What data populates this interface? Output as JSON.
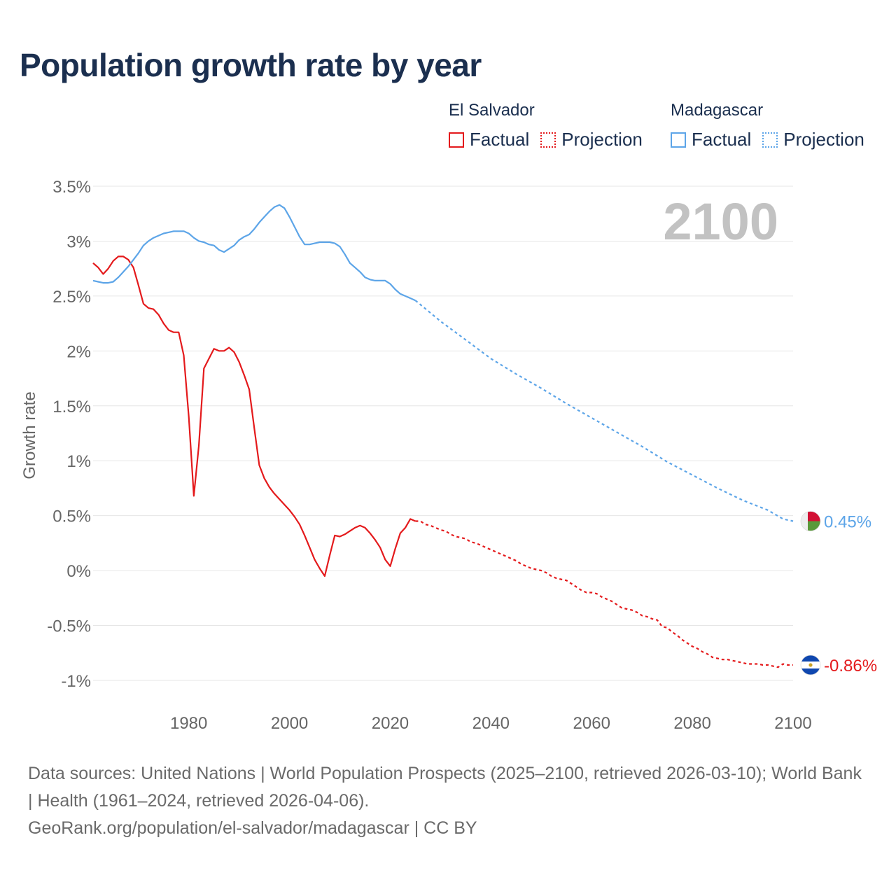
{
  "title": "Population growth rate by year",
  "legend": {
    "el_salvador": {
      "name": "El Salvador",
      "factual": "Factual",
      "projection": "Projection"
    },
    "madagascar": {
      "name": "Madagascar",
      "factual": "Factual",
      "projection": "Projection"
    }
  },
  "footer": {
    "sources": "Data sources: United Nations | World Population Prospects (2025–2100, retrieved 2026-03-10); World Bank | Health (1961–2024, retrieved 2026-04-06).",
    "url": "GeoRank.org/population/el-salvador/madagascar | CC BY"
  },
  "colors": {
    "el_salvador": "#e41a1c",
    "madagascar": "#5da5e8",
    "year_label": "#c2c2c2",
    "axis_text": "#666666"
  },
  "chart_data": {
    "type": "line",
    "title": "Population growth rate by year",
    "ylabel": "Growth rate",
    "xlabel": "",
    "year_label": "2100",
    "xlim": [
      1961,
      2100
    ],
    "ylim": [
      -1,
      3.5
    ],
    "y_ticks": [
      3.5,
      3,
      2.5,
      2,
      1.5,
      1,
      0.5,
      0,
      -0.5,
      -1
    ],
    "y_tick_labels": [
      "3.5%",
      "3%",
      "2.5%",
      "2%",
      "1.5%",
      "1%",
      "0.5%",
      "0%",
      "-0.5%",
      "-1%"
    ],
    "x_ticks": [
      1980,
      2000,
      2020,
      2040,
      2060,
      2080,
      2100
    ],
    "x_tick_labels": [
      "1980",
      "2000",
      "2020",
      "2040",
      "2060",
      "2080",
      "2100"
    ],
    "series": [
      {
        "name": "El Salvador",
        "color_key": "el_salvador",
        "end_label": "-0.86%",
        "factual": [
          [
            1961,
            2.8
          ],
          [
            1962,
            2.76
          ],
          [
            1963,
            2.7
          ],
          [
            1964,
            2.75
          ],
          [
            1965,
            2.82
          ],
          [
            1966,
            2.86
          ],
          [
            1967,
            2.86
          ],
          [
            1968,
            2.83
          ],
          [
            1969,
            2.76
          ],
          [
            1970,
            2.6
          ],
          [
            1971,
            2.43
          ],
          [
            1972,
            2.39
          ],
          [
            1973,
            2.38
          ],
          [
            1974,
            2.33
          ],
          [
            1975,
            2.25
          ],
          [
            1976,
            2.19
          ],
          [
            1977,
            2.17
          ],
          [
            1978,
            2.17
          ],
          [
            1979,
            1.96
          ],
          [
            1980,
            1.4
          ],
          [
            1981,
            0.68
          ],
          [
            1982,
            1.14
          ],
          [
            1983,
            1.84
          ],
          [
            1984,
            1.93
          ],
          [
            1985,
            2.02
          ],
          [
            1986,
            2.0
          ],
          [
            1987,
            2.0
          ],
          [
            1988,
            2.03
          ],
          [
            1989,
            1.99
          ],
          [
            1990,
            1.9
          ],
          [
            1991,
            1.78
          ],
          [
            1992,
            1.65
          ],
          [
            1993,
            1.3
          ],
          [
            1994,
            0.96
          ],
          [
            1995,
            0.84
          ],
          [
            1996,
            0.76
          ],
          [
            1997,
            0.7
          ],
          [
            1998,
            0.65
          ],
          [
            1999,
            0.6
          ],
          [
            2000,
            0.55
          ],
          [
            2001,
            0.49
          ],
          [
            2002,
            0.42
          ],
          [
            2003,
            0.32
          ],
          [
            2004,
            0.21
          ],
          [
            2005,
            0.1
          ],
          [
            2006,
            0.02
          ],
          [
            2007,
            -0.05
          ],
          [
            2008,
            0.14
          ],
          [
            2009,
            0.32
          ],
          [
            2010,
            0.31
          ],
          [
            2011,
            0.33
          ],
          [
            2012,
            0.36
          ],
          [
            2013,
            0.39
          ],
          [
            2014,
            0.41
          ],
          [
            2015,
            0.39
          ],
          [
            2016,
            0.34
          ],
          [
            2017,
            0.28
          ],
          [
            2018,
            0.21
          ],
          [
            2019,
            0.1
          ],
          [
            2020,
            0.04
          ],
          [
            2021,
            0.2
          ],
          [
            2022,
            0.34
          ],
          [
            2023,
            0.39
          ],
          [
            2024,
            0.47
          ],
          [
            2025,
            0.45
          ]
        ],
        "projection": [
          [
            2025,
            0.45
          ],
          [
            2026,
            0.45
          ],
          [
            2027,
            0.42
          ],
          [
            2028,
            0.41
          ],
          [
            2029,
            0.39
          ],
          [
            2030,
            0.37
          ],
          [
            2031,
            0.36
          ],
          [
            2032,
            0.33
          ],
          [
            2033,
            0.31
          ],
          [
            2034,
            0.3
          ],
          [
            2035,
            0.29
          ],
          [
            2036,
            0.26
          ],
          [
            2037,
            0.25
          ],
          [
            2038,
            0.23
          ],
          [
            2039,
            0.21
          ],
          [
            2040,
            0.19
          ],
          [
            2041,
            0.17
          ],
          [
            2042,
            0.15
          ],
          [
            2043,
            0.13
          ],
          [
            2044,
            0.11
          ],
          [
            2045,
            0.09
          ],
          [
            2046,
            0.06
          ],
          [
            2047,
            0.04
          ],
          [
            2048,
            0.02
          ],
          [
            2049,
            0.01
          ],
          [
            2050,
            0.0
          ],
          [
            2051,
            -0.02
          ],
          [
            2052,
            -0.05
          ],
          [
            2053,
            -0.07
          ],
          [
            2054,
            -0.08
          ],
          [
            2055,
            -0.09
          ],
          [
            2056,
            -0.12
          ],
          [
            2057,
            -0.15
          ],
          [
            2058,
            -0.18
          ],
          [
            2059,
            -0.2
          ],
          [
            2060,
            -0.2
          ],
          [
            2061,
            -0.21
          ],
          [
            2062,
            -0.24
          ],
          [
            2063,
            -0.26
          ],
          [
            2064,
            -0.28
          ],
          [
            2065,
            -0.31
          ],
          [
            2066,
            -0.34
          ],
          [
            2067,
            -0.35
          ],
          [
            2068,
            -0.36
          ],
          [
            2069,
            -0.38
          ],
          [
            2070,
            -0.41
          ],
          [
            2071,
            -0.42
          ],
          [
            2072,
            -0.44
          ],
          [
            2073,
            -0.45
          ],
          [
            2074,
            -0.51
          ],
          [
            2075,
            -0.52
          ],
          [
            2076,
            -0.56
          ],
          [
            2077,
            -0.59
          ],
          [
            2078,
            -0.63
          ],
          [
            2079,
            -0.66
          ],
          [
            2080,
            -0.69
          ],
          [
            2081,
            -0.71
          ],
          [
            2082,
            -0.74
          ],
          [
            2083,
            -0.76
          ],
          [
            2084,
            -0.79
          ],
          [
            2085,
            -0.8
          ],
          [
            2086,
            -0.81
          ],
          [
            2087,
            -0.81
          ],
          [
            2088,
            -0.82
          ],
          [
            2089,
            -0.83
          ],
          [
            2090,
            -0.84
          ],
          [
            2091,
            -0.85
          ],
          [
            2092,
            -0.85
          ],
          [
            2093,
            -0.85
          ],
          [
            2094,
            -0.86
          ],
          [
            2095,
            -0.86
          ],
          [
            2096,
            -0.87
          ],
          [
            2097,
            -0.88
          ],
          [
            2098,
            -0.85
          ],
          [
            2099,
            -0.86
          ],
          [
            2100,
            -0.86
          ]
        ]
      },
      {
        "name": "Madagascar",
        "color_key": "madagascar",
        "end_label": "0.45%",
        "factual": [
          [
            1961,
            2.64
          ],
          [
            1962,
            2.63
          ],
          [
            1963,
            2.62
          ],
          [
            1964,
            2.62
          ],
          [
            1965,
            2.63
          ],
          [
            1966,
            2.67
          ],
          [
            1967,
            2.72
          ],
          [
            1968,
            2.77
          ],
          [
            1969,
            2.83
          ],
          [
            1970,
            2.89
          ],
          [
            1971,
            2.96
          ],
          [
            1972,
            3.0
          ],
          [
            1973,
            3.03
          ],
          [
            1974,
            3.05
          ],
          [
            1975,
            3.07
          ],
          [
            1976,
            3.08
          ],
          [
            1977,
            3.09
          ],
          [
            1978,
            3.09
          ],
          [
            1979,
            3.09
          ],
          [
            1980,
            3.07
          ],
          [
            1981,
            3.03
          ],
          [
            1982,
            3.0
          ],
          [
            1983,
            2.99
          ],
          [
            1984,
            2.97
          ],
          [
            1985,
            2.96
          ],
          [
            1986,
            2.92
          ],
          [
            1987,
            2.9
          ],
          [
            1988,
            2.93
          ],
          [
            1989,
            2.96
          ],
          [
            1990,
            3.01
          ],
          [
            1991,
            3.04
          ],
          [
            1992,
            3.06
          ],
          [
            1993,
            3.11
          ],
          [
            1994,
            3.17
          ],
          [
            1995,
            3.22
          ],
          [
            1996,
            3.27
          ],
          [
            1997,
            3.31
          ],
          [
            1998,
            3.33
          ],
          [
            1999,
            3.3
          ],
          [
            2000,
            3.22
          ],
          [
            2001,
            3.13
          ],
          [
            2002,
            3.04
          ],
          [
            2003,
            2.97
          ],
          [
            2004,
            2.97
          ],
          [
            2005,
            2.98
          ],
          [
            2006,
            2.99
          ],
          [
            2007,
            2.99
          ],
          [
            2008,
            2.99
          ],
          [
            2009,
            2.98
          ],
          [
            2010,
            2.95
          ],
          [
            2011,
            2.88
          ],
          [
            2012,
            2.8
          ],
          [
            2013,
            2.76
          ],
          [
            2014,
            2.72
          ],
          [
            2015,
            2.67
          ],
          [
            2016,
            2.65
          ],
          [
            2017,
            2.64
          ],
          [
            2018,
            2.64
          ],
          [
            2019,
            2.64
          ],
          [
            2020,
            2.61
          ],
          [
            2021,
            2.56
          ],
          [
            2022,
            2.52
          ],
          [
            2023,
            2.5
          ],
          [
            2024,
            2.48
          ],
          [
            2025,
            2.46
          ]
        ],
        "projection": [
          [
            2025,
            2.46
          ],
          [
            2030,
            2.27
          ],
          [
            2035,
            2.1
          ],
          [
            2040,
            1.93
          ],
          [
            2045,
            1.79
          ],
          [
            2050,
            1.66
          ],
          [
            2055,
            1.52
          ],
          [
            2060,
            1.39
          ],
          [
            2065,
            1.26
          ],
          [
            2070,
            1.13
          ],
          [
            2075,
            0.99
          ],
          [
            2080,
            0.87
          ],
          [
            2085,
            0.75
          ],
          [
            2090,
            0.64
          ],
          [
            2095,
            0.55
          ],
          [
            2098,
            0.47
          ],
          [
            2100,
            0.45
          ]
        ]
      }
    ]
  }
}
